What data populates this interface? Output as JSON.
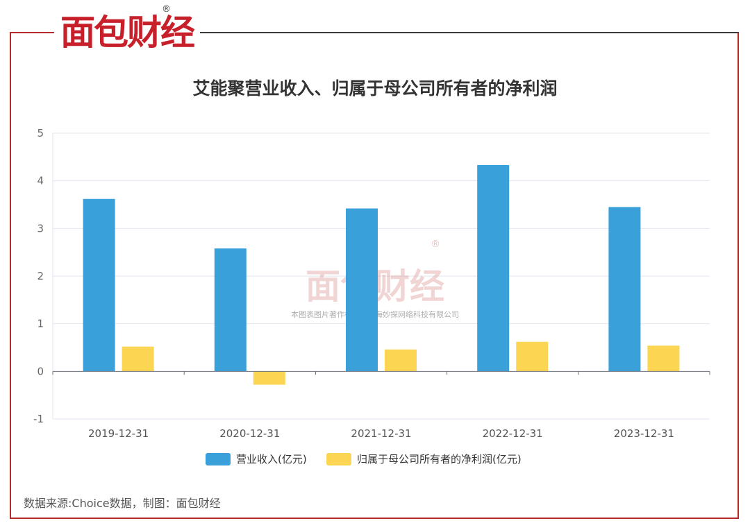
{
  "header": {
    "logo_text": "面包财经",
    "logo_mark": "®"
  },
  "footer": {
    "source": "数据来源:Choice数据，制图：面包财经"
  },
  "watermark": {
    "logo_text": "面包财经",
    "logo_mark": "®",
    "notice": "本图表图片著作权属于上海妙探网络科技有限公司"
  },
  "chart_data": {
    "type": "bar",
    "title": "艾能聚营业收入、归属于母公司所有者的净利润",
    "categories": [
      "2019-12-31",
      "2020-12-31",
      "2021-12-31",
      "2022-12-31",
      "2023-12-31"
    ],
    "series": [
      {
        "name": "营业收入(亿元)",
        "color": "#3aa0da",
        "values": [
          3.62,
          2.58,
          3.42,
          4.33,
          3.45
        ]
      },
      {
        "name": "归属于母公司所有者的净利润(亿元)",
        "color": "#fcd652",
        "values": [
          0.52,
          -0.28,
          0.46,
          0.62,
          0.54
        ]
      }
    ],
    "ylim": [
      -1,
      5
    ],
    "yticks": [
      "5",
      "4",
      "3",
      "2",
      "1",
      "0",
      "-1"
    ],
    "ytick_values": [
      5,
      4,
      3,
      2,
      1,
      0,
      -1
    ],
    "grid": true,
    "legend_position": "bottom",
    "xlabel": "",
    "ylabel": ""
  },
  "colors": {
    "frame_red": "#b52a2a",
    "frame_dark": "#3a3a3a",
    "grid": "#e3e6ef",
    "axis": "#6e7079"
  }
}
